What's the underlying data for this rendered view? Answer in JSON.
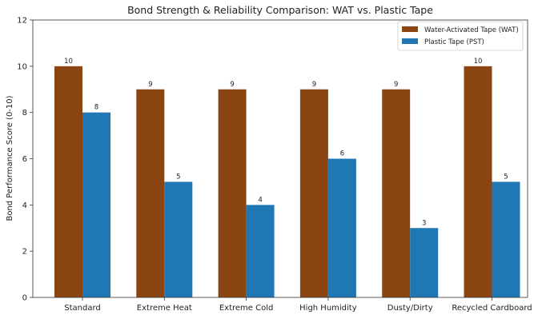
{
  "chart_data": {
    "type": "bar",
    "title": "Bond Strength & Reliability Comparison: WAT vs. Plastic Tape",
    "xlabel": "",
    "ylabel": "Bond Performance Score (0-10)",
    "ylim": [
      0,
      12
    ],
    "yticks": [
      0,
      2,
      4,
      6,
      8,
      10,
      12
    ],
    "grid": false,
    "legend_position": "top-right",
    "categories": [
      "Standard",
      "Extreme Heat",
      "Extreme Cold",
      "High Humidity",
      "Dusty/Dirty",
      "Recycled Cardboard"
    ],
    "series": [
      {
        "name": "Water-Activated Tape (WAT)",
        "color": "#8b4513",
        "values": [
          10,
          9,
          9,
          9,
          9,
          10
        ]
      },
      {
        "name": "Plastic Tape (PST)",
        "color": "#1f77b4",
        "values": [
          8,
          5,
          4,
          6,
          3,
          5
        ]
      }
    ]
  }
}
